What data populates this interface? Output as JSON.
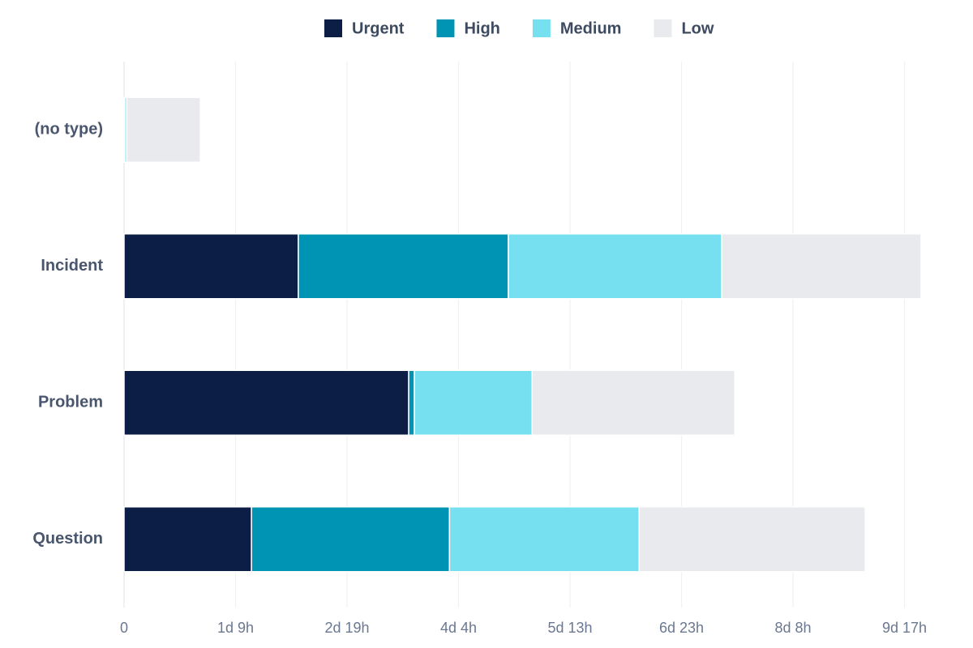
{
  "chart_data": {
    "type": "bar",
    "orientation": "horizontal",
    "stacked": true,
    "categories": [
      "(no type)",
      "Incident",
      "Problem",
      "Question"
    ],
    "series": [
      {
        "name": "Urgent",
        "color": "#0c1e45",
        "values": [
          0,
          52.1,
          85.1,
          38.1
        ]
      },
      {
        "name": "High",
        "color": "#0094b4",
        "values": [
          0.2,
          62.8,
          1.7,
          59.2
        ]
      },
      {
        "name": "Medium",
        "color": "#77e0f0",
        "values": [
          0.6,
          63.8,
          35.2,
          56.7
        ]
      },
      {
        "name": "Low",
        "color": "#e9eaee",
        "values": [
          22,
          59.6,
          60.6,
          67.6
        ]
      }
    ],
    "xlim": [
      0,
      240
    ],
    "xticks": [
      0,
      {
        "value": 33.33,
        "label": "1d 9h"
      },
      {
        "value": 66.67,
        "label": "2d 19h"
      },
      {
        "value": 100,
        "label": "4d 4h"
      },
      {
        "value": 133.33,
        "label": "5d 13h"
      },
      {
        "value": 166.67,
        "label": "6d 23h"
      },
      {
        "value": 200,
        "label": "8d 8h"
      },
      {
        "value": 233.33,
        "label": "9d 17h"
      }
    ],
    "grid": true,
    "legend": "top"
  }
}
